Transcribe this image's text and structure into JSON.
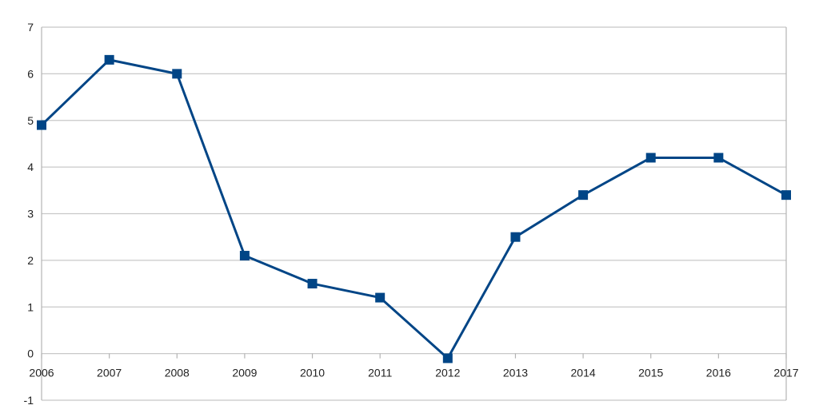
{
  "chart_data": {
    "type": "line",
    "categories": [
      "2006",
      "2007",
      "2008",
      "2009",
      "2010",
      "2011",
      "2012",
      "2013",
      "2014",
      "2015",
      "2016",
      "2017"
    ],
    "series": [
      {
        "values": [
          4.9,
          6.3,
          6.0,
          2.1,
          1.5,
          1.2,
          -0.1,
          2.5,
          3.4,
          4.2,
          4.2,
          3.4
        ]
      }
    ],
    "ylim": [
      -1,
      7
    ],
    "yticks": [
      -1,
      0,
      1,
      2,
      3,
      4,
      5,
      6,
      7
    ],
    "grid": true,
    "legend": "none",
    "line_color": "#004586",
    "marker": "square"
  }
}
